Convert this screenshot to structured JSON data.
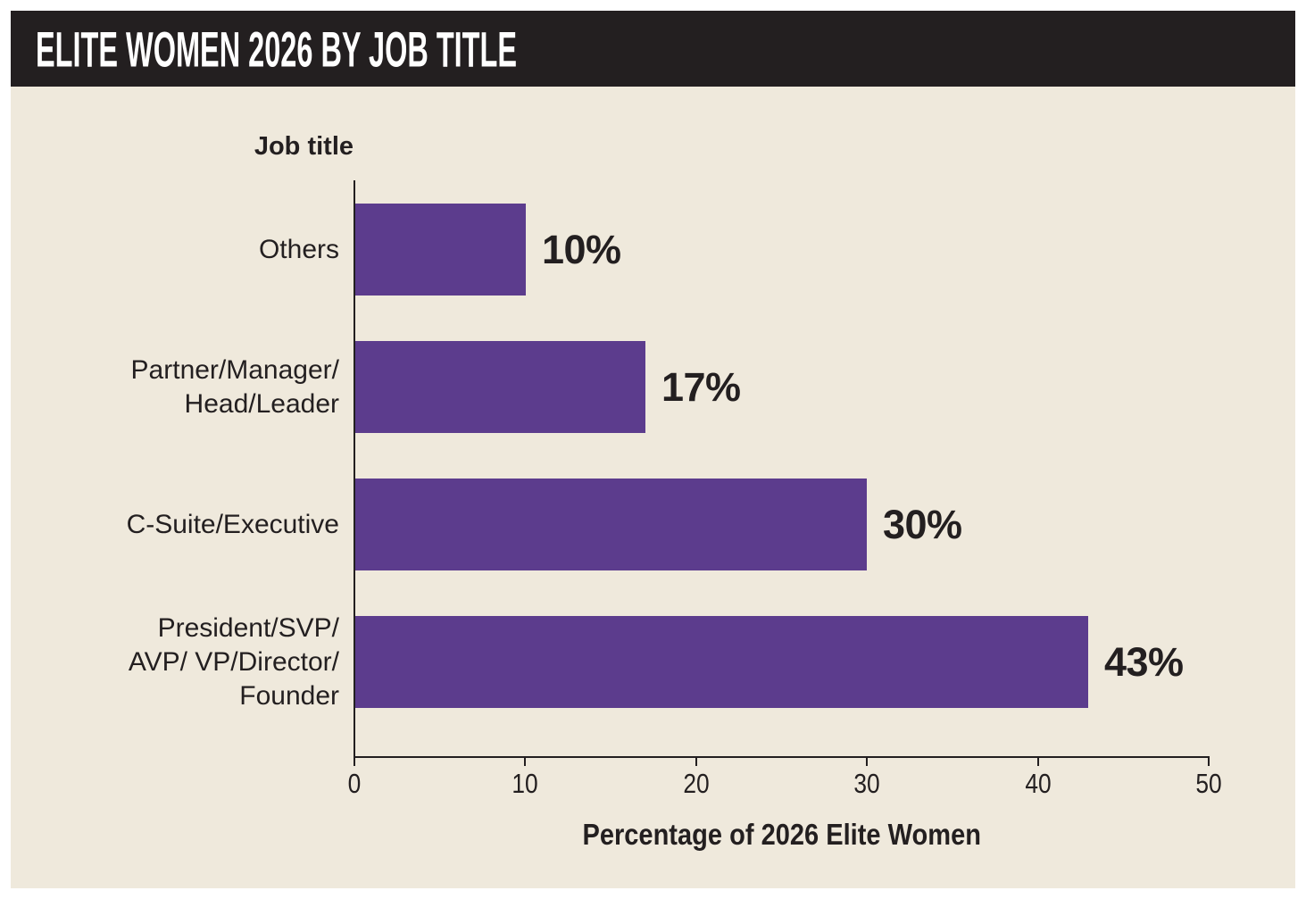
{
  "header": {
    "title": "ELITE WOMEN 2026 BY JOB TITLE"
  },
  "chart_data": {
    "type": "bar",
    "orientation": "horizontal",
    "title": "ELITE WOMEN 2026 BY JOB TITLE",
    "categories": [
      "Others",
      "Partner/Manager/Head/Leader",
      "C-Suite/Executive",
      "President/SVP/AVP/ VP/Director/Founder"
    ],
    "category_lines": [
      [
        "Others"
      ],
      [
        "Partner/Manager/",
        "Head/Leader"
      ],
      [
        "C-Suite/Executive"
      ],
      [
        "President/SVP/",
        "AVP/ VP/Director/",
        "Founder"
      ]
    ],
    "values": [
      10,
      17,
      30,
      43
    ],
    "value_labels": [
      "10%",
      "17%",
      "30%",
      "43%"
    ],
    "xlabel": "Percentage of 2026 Elite Women",
    "ylabel": "Job title",
    "xlim": [
      0,
      50
    ],
    "xticks": [
      0,
      10,
      20,
      30,
      40,
      50
    ],
    "grid": false,
    "legend": null,
    "colors": {
      "bar": "#5C3C8D",
      "panel_background": "#EFE9DC",
      "header_background": "#231F20",
      "header_text": "#FFFFFF",
      "text": "#231F20"
    }
  }
}
